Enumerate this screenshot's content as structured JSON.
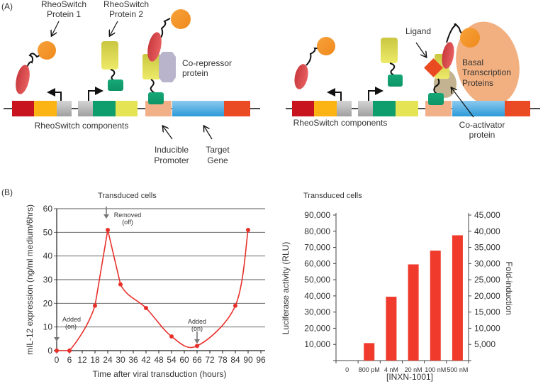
{
  "panel_a": {
    "label": "(A)",
    "left": {
      "protein1": [
        "RheoSwitch",
        "Protein 1"
      ],
      "protein2": [
        "RheoSwitch",
        "Protein 2"
      ],
      "corepressor": [
        "Co-repressor",
        "protein"
      ],
      "components": "RheoSwitch components",
      "promoter": [
        "Inducible",
        "Promoter"
      ],
      "gene": [
        "Target",
        "Gene"
      ]
    },
    "right": {
      "ligand": "Ligand",
      "basal": [
        "Basal",
        "Transcription",
        "Proteins"
      ],
      "coactivator": [
        "Co-activator",
        "protein"
      ],
      "components": "RheoSwitch components"
    }
  },
  "panel_b": {
    "label": "(B)"
  },
  "chart_data": [
    {
      "type": "line",
      "title": "Transduced cells",
      "xlabel": "Time after viral transduction (hours)",
      "ylabel": "mIL-12 expression (ng/ml medium/6hrs)",
      "xlim": [
        0,
        96
      ],
      "ylim": [
        0,
        60
      ],
      "xticks": [
        "0",
        "6",
        "12",
        "18",
        "24",
        "30",
        "36",
        "42",
        "48",
        "54",
        "60",
        "66",
        "72",
        "78",
        "84",
        "90",
        "96"
      ],
      "yticks": [
        "0",
        "10",
        "20",
        "30",
        "40",
        "50",
        "60"
      ],
      "grid": "horizontal",
      "x": [
        0,
        6,
        18,
        24,
        30,
        42,
        54,
        66,
        84,
        90
      ],
      "y": [
        0,
        0,
        19,
        51,
        28,
        18,
        6,
        2,
        19,
        51
      ],
      "color": "#e8302a",
      "annotations": [
        {
          "text": [
            "Added",
            "(on)"
          ],
          "x": 0
        },
        {
          "text": [
            "Removed",
            "(off)"
          ],
          "x": 24
        },
        {
          "text": [
            "Added",
            "(on)"
          ],
          "x": 66
        }
      ]
    },
    {
      "type": "bar",
      "title": "Transduced cells",
      "xlabel": "[INXN-1001]",
      "ylabel": "Luciferase activity (RLU)",
      "y2label": "Fold-induction",
      "categories": [
        "0",
        "800 pM",
        "4 nM",
        "20 nM",
        "100 nM",
        "500 nM"
      ],
      "values": [
        0,
        10800,
        39500,
        59500,
        68000,
        77500
      ],
      "ylim": [
        0,
        90000
      ],
      "y2lim": [
        0,
        45000
      ],
      "yticks": [
        "10,000",
        "20,000",
        "30,000",
        "40,000",
        "50,000",
        "60,000",
        "70,000",
        "80,000",
        "90,000"
      ],
      "y2ticks": [
        "5,000",
        "10,000",
        "15,000",
        "20,000",
        "25,000",
        "30,000",
        "35,000",
        "40,000",
        "45,000"
      ],
      "color": "#ef3a2c"
    }
  ]
}
